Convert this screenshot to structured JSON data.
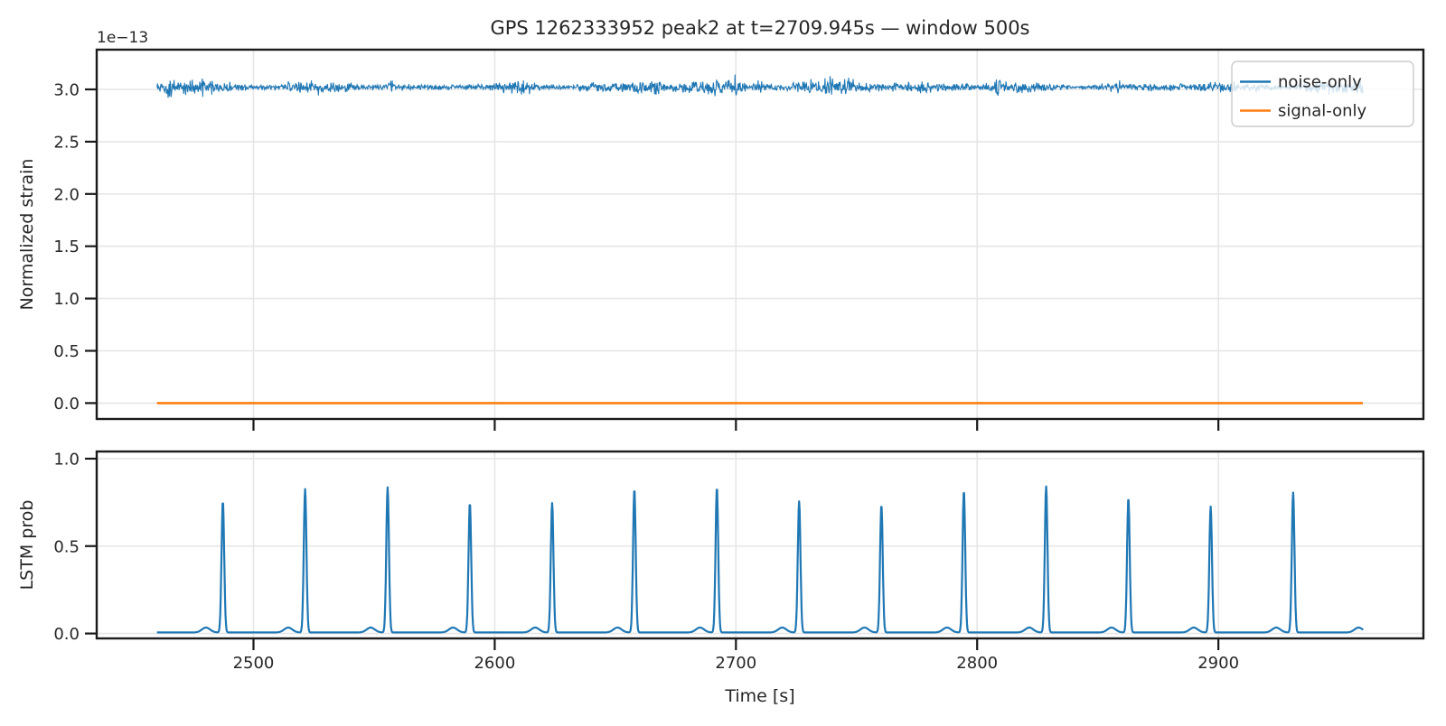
{
  "figure": {
    "background": "#ffffff",
    "grid_color": "#e6e6e6",
    "spine_color": "#1a1a1a",
    "text_color": "#262626",
    "accent_blue": "#1f77b4",
    "accent_orange": "#ff7f0e"
  },
  "chart_data": [
    {
      "id": "strain",
      "type": "line",
      "title": "GPS 1262333952 peak2 at t=2709.945s — window 500s",
      "ylabel": "Normalized strain",
      "y_offset_text": "1e−13",
      "xlim": [
        2435,
        2985
      ],
      "ylim": [
        -0.152,
        3.38
      ],
      "xticks": [
        2500,
        2600,
        2700,
        2800,
        2900
      ],
      "xtick_labels_shown": false,
      "yticks": [
        0.0,
        0.5,
        1.0,
        1.5,
        2.0,
        2.5,
        3.0
      ],
      "ytick_labels": [
        "0.0",
        "0.5",
        "1.0",
        "1.5",
        "2.0",
        "2.5",
        "3.0"
      ],
      "grid": true,
      "legend": {
        "position": "upper right",
        "entries": [
          {
            "label": "noise-only",
            "color": "#1f77b4"
          },
          {
            "label": "signal-only",
            "color": "#ff7f0e"
          }
        ]
      },
      "series": [
        {
          "name": "noise-only",
          "color": "#1f77b4",
          "kind": "noise_band",
          "x_start": 2460.0,
          "x_end": 2959.9,
          "baseline": 3.02,
          "noise_typical": 0.05,
          "noise_max": 0.13,
          "linewidth": 1.1
        },
        {
          "name": "signal-only",
          "color": "#ff7f0e",
          "kind": "constant",
          "x_start": 2460.0,
          "x_end": 2959.9,
          "value": 0.0,
          "linewidth": 2.6
        }
      ]
    },
    {
      "id": "lstm",
      "type": "line",
      "xlabel": "Time [s]",
      "ylabel": "LSTM prob",
      "xlim": [
        2435,
        2985
      ],
      "ylim": [
        -0.028,
        1.041
      ],
      "xticks": [
        2500,
        2600,
        2700,
        2800,
        2900
      ],
      "xtick_labels": [
        "2500",
        "2600",
        "2700",
        "2800",
        "2900"
      ],
      "yticks": [
        0.0,
        0.5,
        1.0
      ],
      "ytick_labels": [
        "0.0",
        "0.5",
        "1.0"
      ],
      "grid": true,
      "series": [
        {
          "name": "lstm-prob",
          "color": "#1f77b4",
          "kind": "spike_train",
          "x_start": 2460.0,
          "x_end": 2959.9,
          "baseline": 0.006,
          "linewidth": 2.2,
          "spike_period_s": 34.13,
          "spike_times": [
            2487.3,
            2521.4,
            2555.6,
            2589.7,
            2623.8,
            2657.9,
            2692.1,
            2726.2,
            2760.3,
            2794.5,
            2828.6,
            2862.7,
            2896.8,
            2931.0
          ],
          "spike_heights": [
            0.75,
            0.82,
            0.83,
            0.74,
            0.74,
            0.82,
            0.83,
            0.75,
            0.73,
            0.81,
            0.835,
            0.77,
            0.72,
            0.8
          ],
          "spike_sigma_s": 0.55,
          "precursor_offset_s": -7.0,
          "precursor_height": 0.028,
          "precursor_sigma_s": 1.7
        }
      ]
    }
  ]
}
